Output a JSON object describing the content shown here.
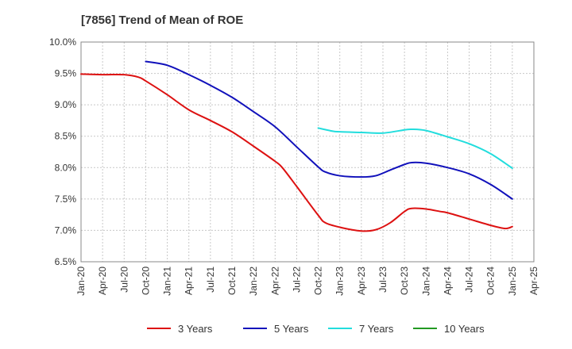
{
  "chart_data": {
    "type": "line",
    "title": "[7856]  Trend of Mean of ROE",
    "xlabel": "",
    "ylabel": "",
    "ylim": [
      6.5,
      10.0
    ],
    "grid": true,
    "legend_position": "bottom",
    "x_ticks": [
      "Jan-20",
      "Apr-20",
      "Jul-20",
      "Oct-20",
      "Jan-21",
      "Apr-21",
      "Jul-21",
      "Oct-21",
      "Jan-22",
      "Apr-22",
      "Jul-22",
      "Oct-22",
      "Jan-23",
      "Apr-23",
      "Jul-23",
      "Oct-23",
      "Jan-24",
      "Apr-24",
      "Jul-24",
      "Oct-24",
      "Jan-25",
      "Apr-25"
    ],
    "y_ticks": [
      "6.5%",
      "7.0%",
      "7.5%",
      "8.0%",
      "8.5%",
      "9.0%",
      "9.5%",
      "10.0%"
    ],
    "series": [
      {
        "name": "3 Years",
        "color": "#dd1111",
        "x": [
          "Jan-20",
          "Apr-20",
          "Jul-20",
          "Sep-20",
          "Oct-20",
          "Jan-21",
          "Apr-21",
          "Jul-21",
          "Oct-21",
          "Jan-22",
          "Apr-22",
          "May-22",
          "Jul-22",
          "Oct-22",
          "Nov-22",
          "Jan-23",
          "Apr-23",
          "Jun-23",
          "Aug-23",
          "Oct-23",
          "Nov-23",
          "Jan-24",
          "Mar-24",
          "Apr-24",
          "Jul-24",
          "Oct-24",
          "Dec-24",
          "Jan-25"
        ],
        "values": [
          9.49,
          9.48,
          9.48,
          9.44,
          9.38,
          9.16,
          8.92,
          8.75,
          8.57,
          8.34,
          8.1,
          8.0,
          7.7,
          7.24,
          7.12,
          7.05,
          6.99,
          7.01,
          7.12,
          7.3,
          7.35,
          7.34,
          7.3,
          7.28,
          7.18,
          7.08,
          7.03,
          7.06
        ]
      },
      {
        "name": "5 Years",
        "color": "#1111bb",
        "x": [
          "Oct-20",
          "Jan-21",
          "Apr-21",
          "Jul-21",
          "Oct-21",
          "Jan-22",
          "Apr-22",
          "Jul-22",
          "Oct-22",
          "Nov-22",
          "Jan-23",
          "Apr-23",
          "Jun-23",
          "Aug-23",
          "Oct-23",
          "Nov-23",
          "Jan-24",
          "Apr-24",
          "Jul-24",
          "Oct-24",
          "Jan-25"
        ],
        "values": [
          9.69,
          9.63,
          9.48,
          9.31,
          9.12,
          8.89,
          8.65,
          8.33,
          8.01,
          7.93,
          7.87,
          7.85,
          7.87,
          7.96,
          8.05,
          8.08,
          8.07,
          8.0,
          7.9,
          7.73,
          7.5
        ]
      },
      {
        "name": "7 Years",
        "color": "#22dddd",
        "x": [
          "Oct-22",
          "Dec-22",
          "Jan-23",
          "Apr-23",
          "Jul-23",
          "Oct-23",
          "Nov-23",
          "Jan-24",
          "Apr-24",
          "Jul-24",
          "Oct-24",
          "Jan-25"
        ],
        "values": [
          8.63,
          8.58,
          8.57,
          8.56,
          8.55,
          8.6,
          8.61,
          8.59,
          8.49,
          8.38,
          8.22,
          7.99
        ]
      },
      {
        "name": "10 Years",
        "color": "#229922",
        "x": [],
        "values": []
      }
    ]
  }
}
